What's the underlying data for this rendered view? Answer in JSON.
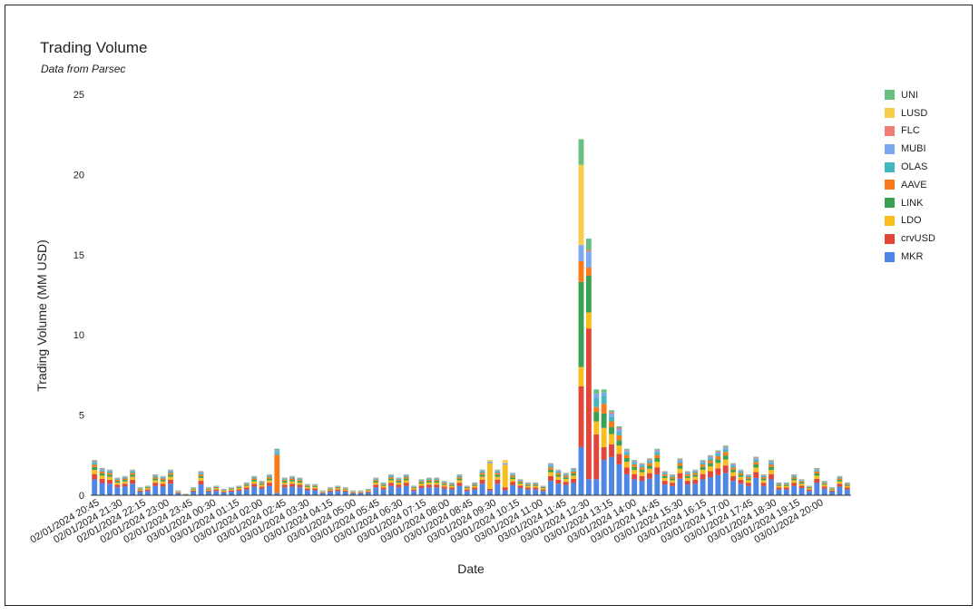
{
  "title": "Trading Volume",
  "subtitle": "Data from Parsec",
  "chart_data": {
    "type": "bar",
    "stacked": true,
    "title": "Trading Volume",
    "subtitle": "Data from Parsec",
    "xlabel": "Date",
    "ylabel": "Trading Volume (MM USD)",
    "ylim": [
      0,
      25
    ],
    "yticks": [
      0,
      5,
      10,
      15,
      20,
      25
    ],
    "legend_position": "right",
    "tick_labels": [
      "02/01/2024 20:45",
      "02/01/2024 21:30",
      "02/01/2024 22:15",
      "02/01/2024 23:00",
      "02/01/2024 23:45",
      "03/01/2024 00:30",
      "03/01/2024 01:15",
      "03/01/2024 02:00",
      "03/01/2024 02:45",
      "03/01/2024 03:30",
      "03/01/2024 04:15",
      "03/01/2024 05:00",
      "03/01/2024 05:45",
      "03/01/2024 06:30",
      "03/01/2024 07:15",
      "03/01/2024 08:00",
      "03/01/2024 08:45",
      "03/01/2024 09:30",
      "03/01/2024 10:15",
      "03/01/2024 11:00",
      "03/01/2024 11:45",
      "03/01/2024 12:30",
      "03/01/2024 13:15",
      "03/01/2024 14:00",
      "03/01/2024 14:45",
      "03/01/2024 15:30",
      "03/01/2024 16:15",
      "03/01/2024 17:00",
      "03/01/2024 17:45",
      "03/01/2024 18:30",
      "03/01/2024 19:15",
      "03/01/2024 20:00"
    ],
    "series_order": [
      "MKR",
      "crvUSD",
      "LDO",
      "LINK",
      "AAVE",
      "OLAS",
      "MUBI",
      "FLC",
      "LUSD",
      "UNI"
    ],
    "colors": {
      "MKR": "#4e86e6",
      "crvUSD": "#e0463a",
      "LDO": "#f9be1d",
      "LINK": "#3aa152",
      "AAVE": "#f97a18",
      "OLAS": "#42b8be",
      "MUBI": "#7aa9ef",
      "FLC": "#ee7d76",
      "LUSD": "#f7cd4d",
      "UNI": "#69bf80"
    },
    "totals": [
      2.2,
      1.7,
      1.6,
      1.1,
      1.2,
      1.6,
      0.5,
      0.6,
      1.3,
      1.2,
      1.6,
      0.3,
      0.1,
      0.5,
      1.5,
      0.5,
      0.6,
      0.4,
      0.5,
      0.6,
      0.8,
      1.2,
      0.9,
      1.3,
      2.9,
      1.1,
      1.2,
      1.1,
      0.7,
      0.7,
      0.3,
      0.5,
      0.6,
      0.5,
      0.3,
      0.3,
      0.4,
      1.1,
      0.8,
      1.3,
      1.1,
      1.3,
      0.6,
      1.0,
      1.1,
      1.1,
      0.9,
      0.8,
      1.3,
      0.6,
      0.8,
      1.6,
      2.2,
      1.6,
      2.2,
      1.4,
      1.0,
      0.8,
      0.8,
      0.6,
      2.0,
      1.6,
      1.4,
      1.7,
      22.2,
      16.0,
      6.6,
      6.6,
      5.3,
      4.3,
      2.9,
      2.2,
      2.0,
      2.3,
      2.9,
      1.5,
      1.3,
      2.3,
      1.5,
      1.6,
      2.2,
      2.5,
      2.8,
      3.1,
      2.0,
      1.6,
      1.3,
      2.4,
      1.3,
      2.2,
      0.8,
      0.8,
      1.3,
      1.0,
      0.6,
      1.7,
      0.9,
      0.5,
      1.2,
      0.8
    ],
    "stack_composition": {
      "default": {
        "MKR": 0.45,
        "crvUSD": 0.15,
        "LDO": 0.12,
        "LINK": 0.08,
        "AAVE": 0.07,
        "OLAS": 0.05,
        "MUBI": 0.04,
        "FLC": 0.02,
        "UNI": 0.02
      },
      "24": {
        "MKR": 0.05,
        "AAVE": 0.82,
        "OLAS": 0.04,
        "MUBI": 0.05,
        "UNI": 0.04
      },
      "64": {
        "MKR": 3.0,
        "crvUSD": 3.8,
        "LDO": 1.2,
        "LINK": 5.3,
        "AAVE": 1.3,
        "MUBI": 1.0,
        "LUSD": 5.0,
        "UNI": 1.6
      },
      "65": {
        "MKR": 1.0,
        "crvUSD": 9.4,
        "LDO": 1.0,
        "LINK": 2.3,
        "AAVE": 0.5,
        "MUBI": 1.0,
        "FLC": 0.1,
        "UNI": 0.7
      },
      "66": {
        "MKR": 1.0,
        "crvUSD": 2.8,
        "LDO": 0.8,
        "LINK": 0.6,
        "AAVE": 0.3,
        "OLAS": 0.6,
        "MUBI": 0.2,
        "UNI": 0.3
      },
      "67": {
        "MKR": 2.2,
        "crvUSD": 0.8,
        "LDO": 1.2,
        "LINK": 0.9,
        "AAVE": 0.6,
        "OLAS": 0.5,
        "MUBI": 0.2,
        "UNI": 0.2
      },
      "52": {
        "MKR": 0.3,
        "crvUSD": 0.1,
        "LDO": 1.6,
        "MUBI": 0.1,
        "LUSD": 0.1
      },
      "54": {
        "MKR": 0.3,
        "crvUSD": 0.2,
        "LDO": 1.4,
        "MUBI": 0.1,
        "LUSD": 0.2
      }
    }
  }
}
